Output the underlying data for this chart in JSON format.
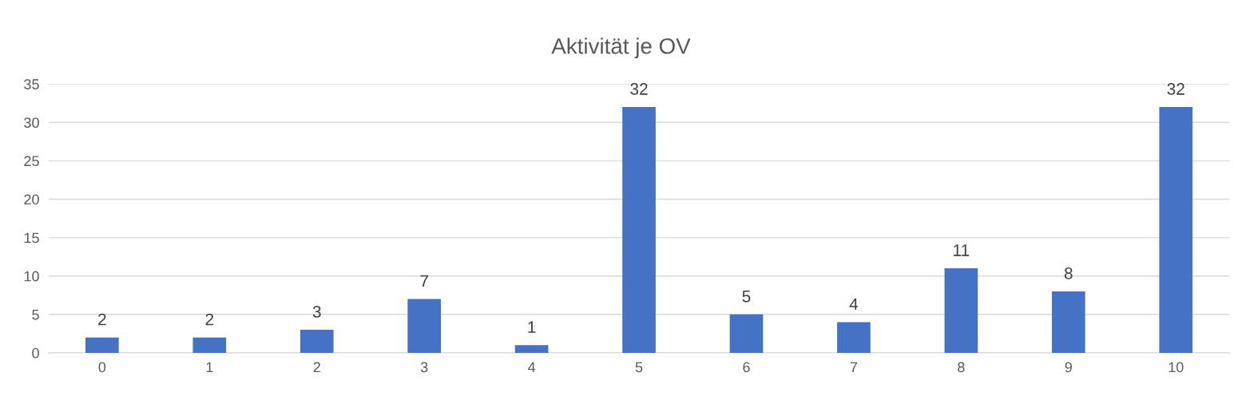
{
  "chart_data": {
    "type": "bar",
    "title": "Aktivität je OV",
    "categories": [
      "0",
      "1",
      "2",
      "3",
      "4",
      "5",
      "6",
      "7",
      "8",
      "9",
      "10"
    ],
    "values": [
      2,
      2,
      3,
      7,
      1,
      32,
      5,
      4,
      11,
      8,
      32
    ],
    "color": "#4472c4",
    "ylim": [
      0,
      35
    ],
    "yticks": [
      0,
      5,
      10,
      15,
      20,
      25,
      30,
      35
    ],
    "grid": "y",
    "data_labels": true
  }
}
